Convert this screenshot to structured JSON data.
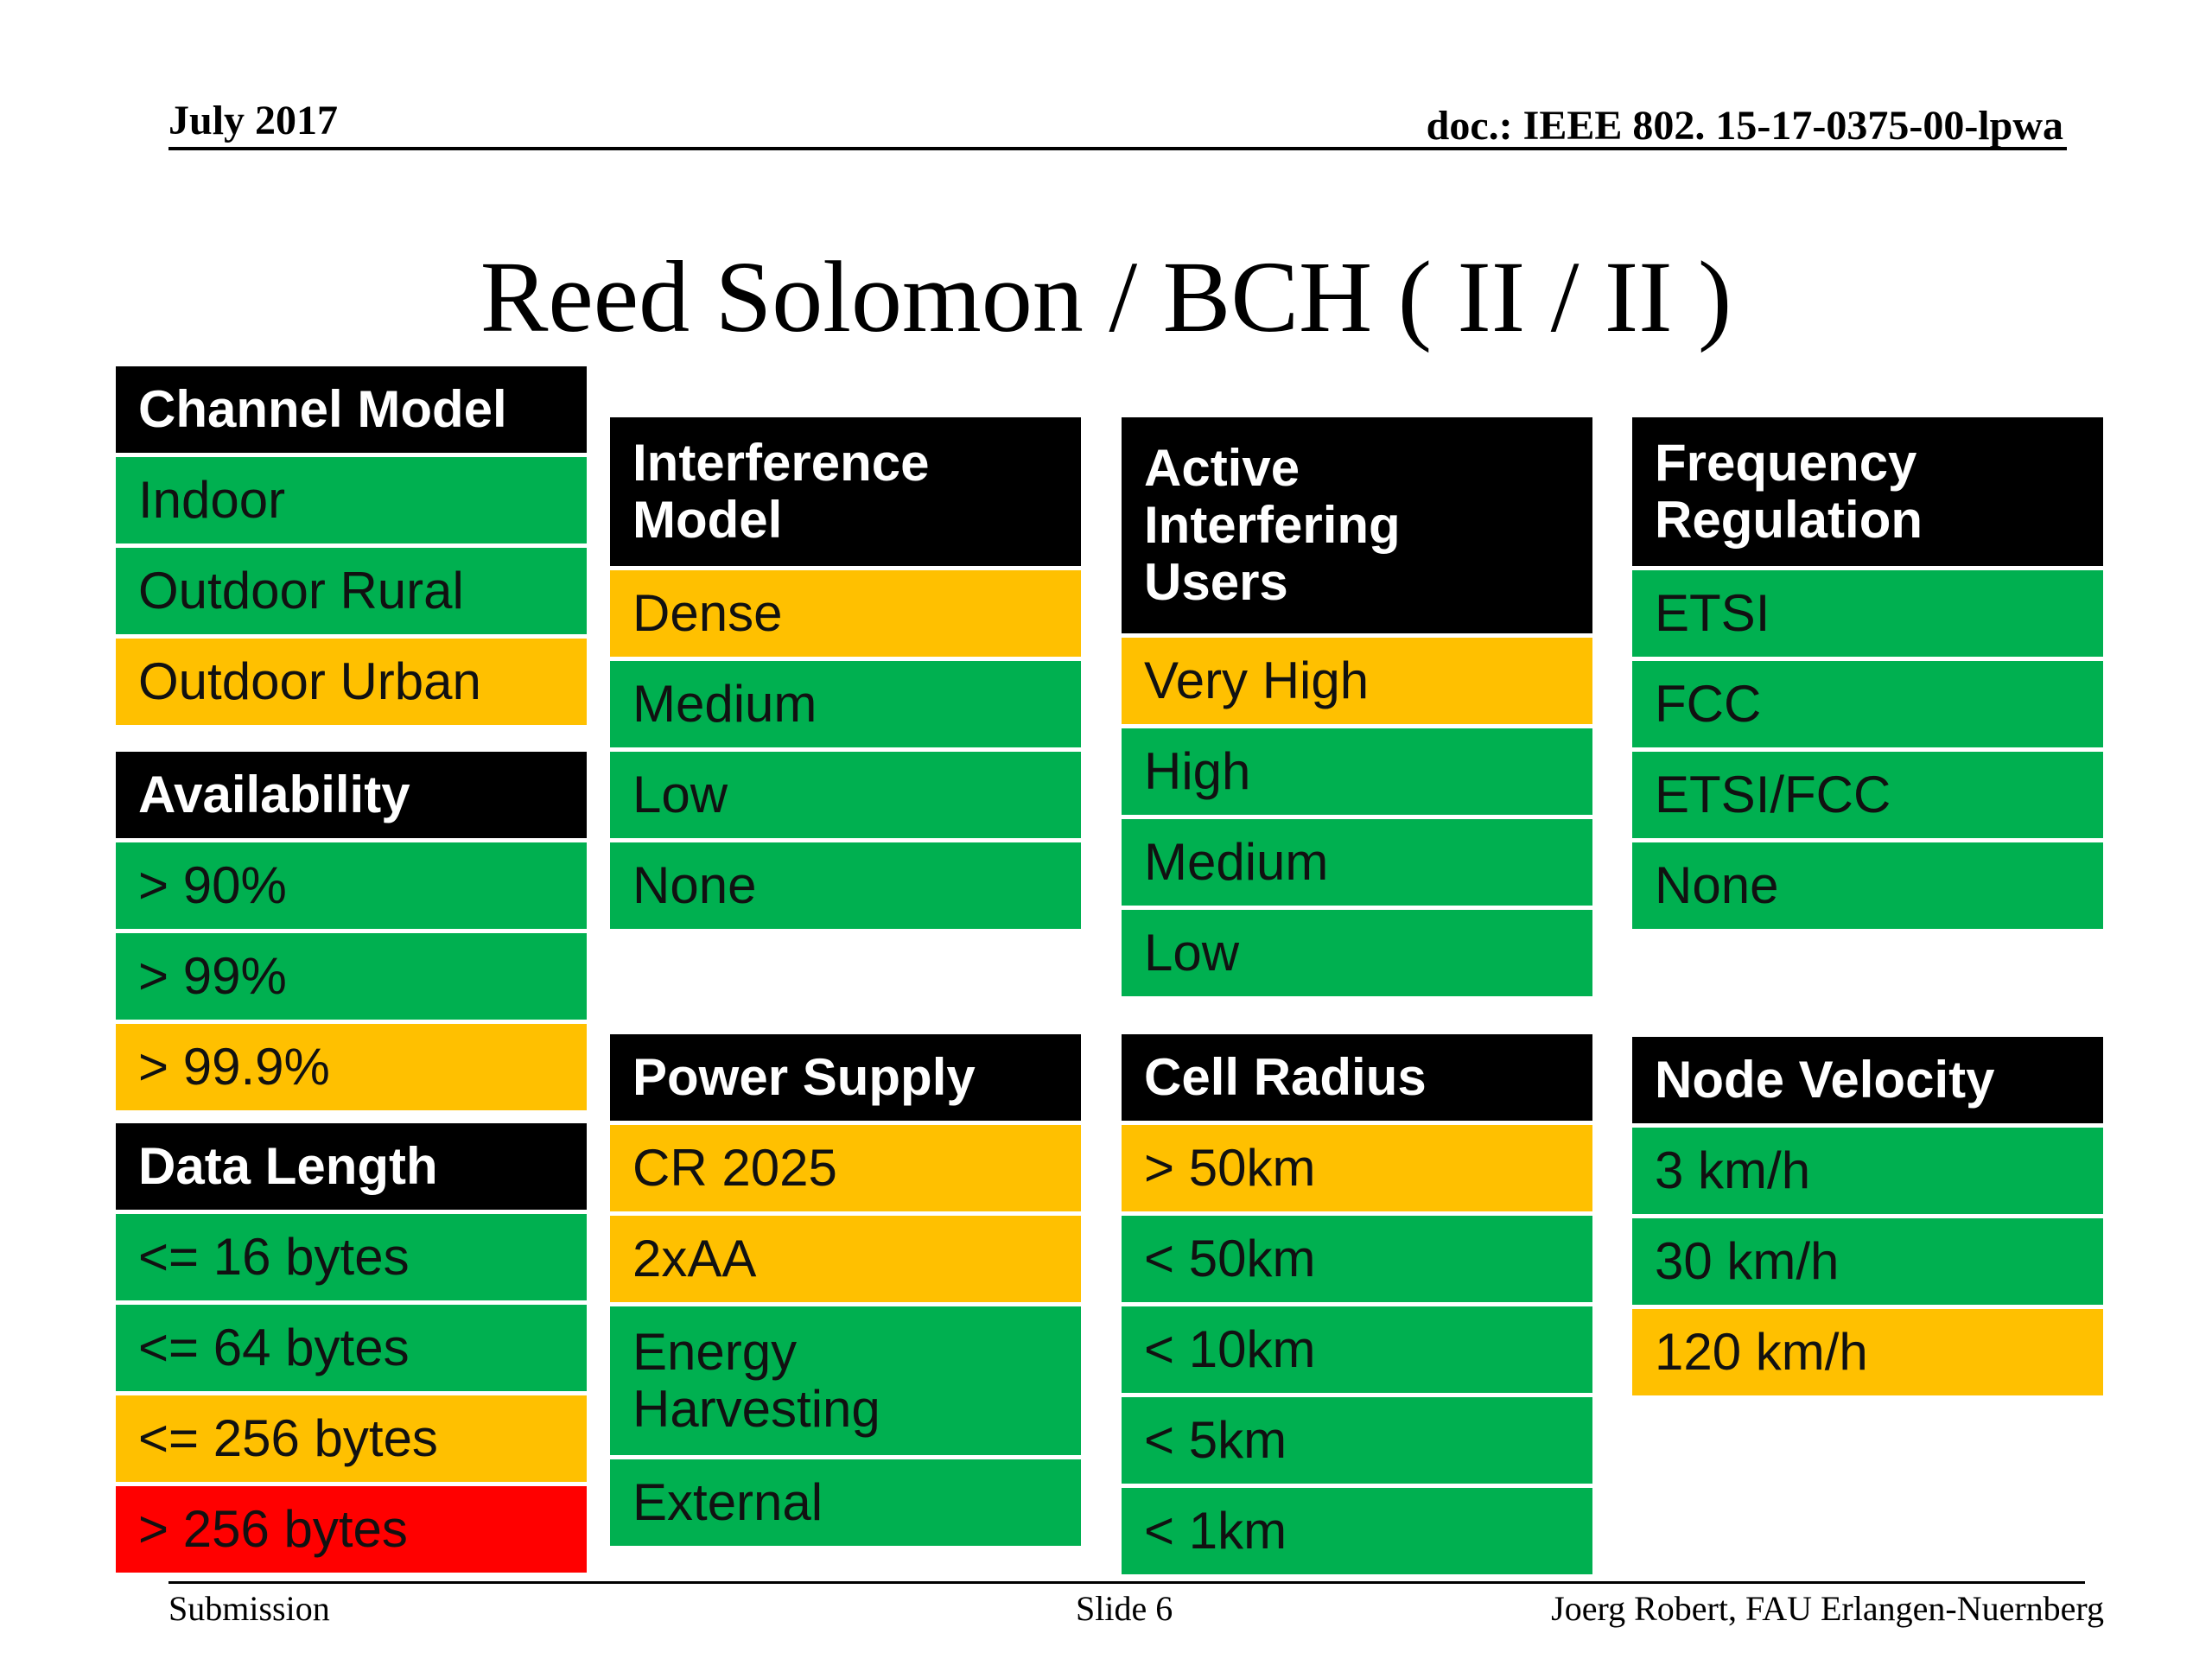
{
  "header": {
    "date": "July 2017",
    "doc": "doc.: IEEE 802. 15-17-0375-00-lpwa"
  },
  "title": "Reed Solomon / BCH ( II / II )",
  "footer": {
    "left": "Submission",
    "center": "Slide 6",
    "right": "Joerg Robert, FAU Erlangen-Nuernberg"
  },
  "colors": {
    "green": "#00b050",
    "amber": "#ffc000",
    "red": "#ff0000",
    "header": "#000000"
  },
  "groups": {
    "channel_model": {
      "heading": "Channel Model",
      "items": [
        {
          "label": "Indoor",
          "status": "green"
        },
        {
          "label": "Outdoor Rural",
          "status": "green"
        },
        {
          "label": "Outdoor Urban",
          "status": "amber"
        }
      ]
    },
    "availability": {
      "heading": "Availability",
      "items": [
        {
          "label": "> 90%",
          "status": "green"
        },
        {
          "label": "> 99%",
          "status": "green"
        },
        {
          "label": "> 99.9%",
          "status": "amber"
        }
      ]
    },
    "data_length": {
      "heading": "Data Length",
      "items": [
        {
          "label": "<= 16 bytes",
          "status": "green"
        },
        {
          "label": "<= 64 bytes",
          "status": "green"
        },
        {
          "label": "<= 256 bytes",
          "status": "amber"
        },
        {
          "label": "> 256 bytes",
          "status": "red"
        }
      ]
    },
    "interference_model": {
      "heading": "Interference\nModel",
      "items": [
        {
          "label": "Dense",
          "status": "amber"
        },
        {
          "label": "Medium",
          "status": "green"
        },
        {
          "label": "Low",
          "status": "green"
        },
        {
          "label": "None",
          "status": "green"
        }
      ]
    },
    "power_supply": {
      "heading": "Power Supply",
      "items": [
        {
          "label": "CR 2025",
          "status": "amber"
        },
        {
          "label": "2xAA",
          "status": "amber"
        },
        {
          "label": "Energy\nHarvesting",
          "status": "green"
        },
        {
          "label": "External",
          "status": "green"
        }
      ]
    },
    "active_interfering_users": {
      "heading": "Active\nInterfering\nUsers",
      "items": [
        {
          "label": "Very High",
          "status": "amber"
        },
        {
          "label": "High",
          "status": "green"
        },
        {
          "label": "Medium",
          "status": "green"
        },
        {
          "label": "Low",
          "status": "green"
        }
      ]
    },
    "cell_radius": {
      "heading": "Cell Radius",
      "items": [
        {
          "label": "> 50km",
          "status": "amber"
        },
        {
          "label": "< 50km",
          "status": "green"
        },
        {
          "label": "< 10km",
          "status": "green"
        },
        {
          "label": "< 5km",
          "status": "green"
        },
        {
          "label": "< 1km",
          "status": "green"
        }
      ]
    },
    "frequency_regulation": {
      "heading": "Frequency\nRegulation",
      "items": [
        {
          "label": "ETSI",
          "status": "green"
        },
        {
          "label": "FCC",
          "status": "green"
        },
        {
          "label": "ETSI/FCC",
          "status": "green"
        },
        {
          "label": "None",
          "status": "green"
        }
      ]
    },
    "node_velocity": {
      "heading": "Node Velocity",
      "items": [
        {
          "label": "3 km/h",
          "status": "green"
        },
        {
          "label": "30 km/h",
          "status": "green"
        },
        {
          "label": "120 km/h",
          "status": "amber"
        }
      ]
    }
  }
}
